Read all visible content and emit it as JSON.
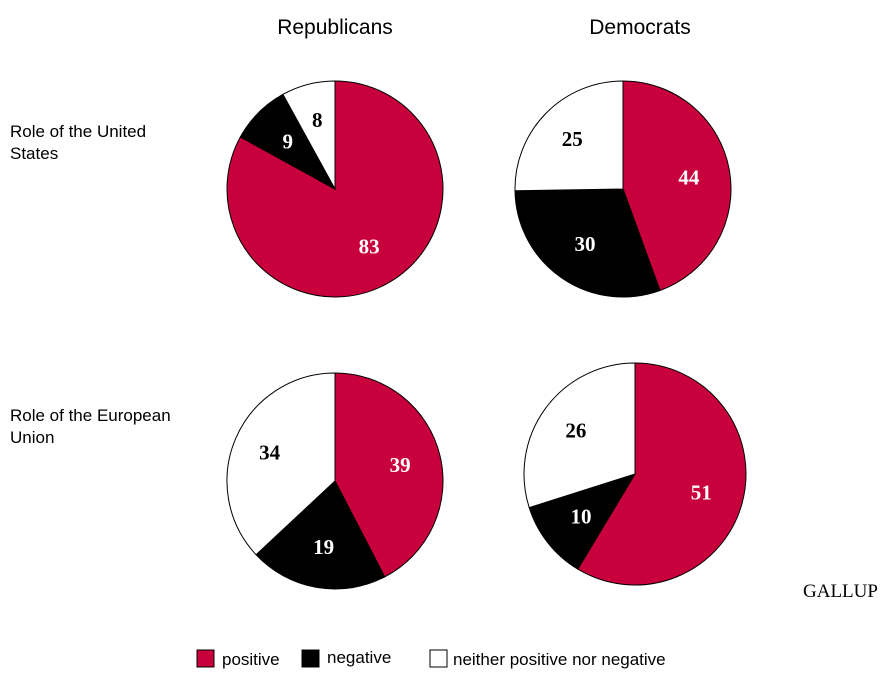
{
  "chart_data": {
    "type": "pie",
    "column_titles": [
      "Republicans",
      "Democrats"
    ],
    "row_labels": [
      [
        "Role of the United",
        "States"
      ],
      [
        "Role of the European",
        "Union"
      ]
    ],
    "legend": [
      "positive",
      "negative",
      "neither positive nor negative"
    ],
    "colors": {
      "positive": "#c8003c",
      "negative": "#000000",
      "neither": "#ffffff"
    },
    "pies": [
      {
        "column": "Republicans",
        "row": "Role of the United States",
        "values": [
          83,
          9,
          8
        ]
      },
      {
        "column": "Democrats",
        "row": "Role of the United States",
        "values": [
          44,
          30,
          25
        ]
      },
      {
        "column": "Republicans",
        "row": "Role of the European Union",
        "values": [
          39,
          19,
          34
        ]
      },
      {
        "column": "Democrats",
        "row": "Role of the European Union",
        "values": [
          51,
          10,
          26
        ]
      }
    ],
    "source": "GALLUP"
  }
}
